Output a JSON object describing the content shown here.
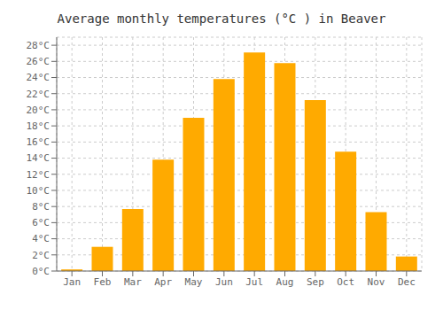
{
  "chart_data": {
    "type": "bar",
    "title": "Average monthly temperatures (°C ) in Beaver",
    "categories": [
      "Jan",
      "Feb",
      "Mar",
      "Apr",
      "May",
      "Jun",
      "Jul",
      "Aug",
      "Sep",
      "Oct",
      "Nov",
      "Dec"
    ],
    "values": [
      0.2,
      3.0,
      7.7,
      13.8,
      19.0,
      23.8,
      27.1,
      25.8,
      21.2,
      14.8,
      7.3,
      1.8
    ],
    "color": "#FFAA00",
    "ylim": [
      0,
      29
    ],
    "yticks": [
      {
        "value": 0,
        "label": "0°C"
      },
      {
        "value": 2,
        "label": "2°C"
      },
      {
        "value": 4,
        "label": "4°C"
      },
      {
        "value": 6,
        "label": "6°C"
      },
      {
        "value": 8,
        "label": "8°C"
      },
      {
        "value": 10,
        "label": "10°C"
      },
      {
        "value": 12,
        "label": "12°C"
      },
      {
        "value": 14,
        "label": "14°C"
      },
      {
        "value": 16,
        "label": "16°C"
      },
      {
        "value": 18,
        "label": "18°C"
      },
      {
        "value": 20,
        "label": "20°C"
      },
      {
        "value": 22,
        "label": "22°C"
      },
      {
        "value": 24,
        "label": "24°C"
      },
      {
        "value": 26,
        "label": "26°C"
      },
      {
        "value": 28,
        "label": "28°C"
      }
    ],
    "grid": true
  }
}
